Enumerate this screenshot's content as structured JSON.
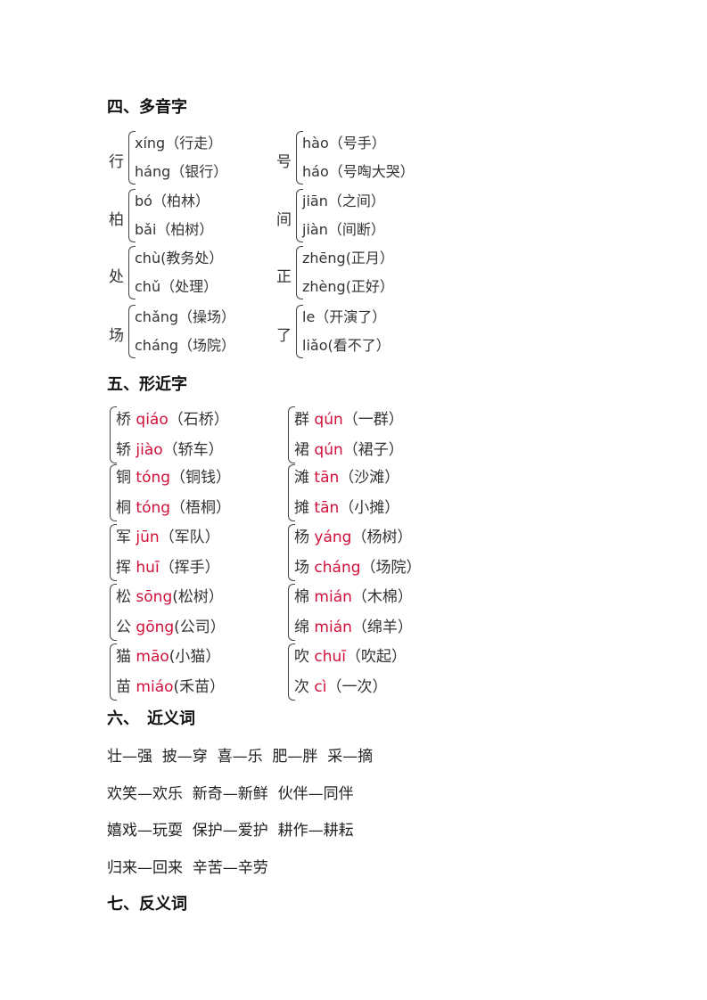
{
  "sections": {
    "s4": {
      "title": "四、多音字"
    },
    "s5": {
      "title": "五、形近字"
    },
    "s6": {
      "title": "六、　近义词",
      "lines": [
        "壮—强  披—穿  喜—乐  肥—胖  采—摘",
        "欢笑—欢乐  新奇—新鲜  伙伴—同伴",
        "嬉戏—玩耍  保护—爱护  耕作—耕耘",
        "归来—回来  辛苦—辛劳"
      ]
    },
    "s7": {
      "title": "七、反义词"
    }
  },
  "polyphones": [
    {
      "char": "行",
      "items": [
        {
          "py": "xíng",
          "word": "（行走）"
        },
        {
          "py": "háng",
          "word": "（银行）"
        }
      ]
    },
    {
      "char": "号",
      "items": [
        {
          "py": "hào",
          "word": "（号手）"
        },
        {
          "py": "háo",
          "word": "（号啕大哭）"
        }
      ]
    },
    {
      "char": "柏",
      "items": [
        {
          "py": "bó",
          "word": "（柏林）"
        },
        {
          "py": "bǎi",
          "word": "（柏树）"
        }
      ]
    },
    {
      "char": "间",
      "items": [
        {
          "py": "jiān",
          "word": "（之间）"
        },
        {
          "py": "jiàn",
          "word": "（间断）"
        }
      ]
    },
    {
      "char": "处",
      "items": [
        {
          "py": "chù",
          "word": "(教务处）"
        },
        {
          "py": "chǔ",
          "word": "（处理）"
        }
      ]
    },
    {
      "char": "正",
      "items": [
        {
          "py": "zhēng",
          "word": "(正月）"
        },
        {
          "py": "zhèng",
          "word": "(正好）"
        }
      ]
    },
    {
      "char": "场",
      "items": [
        {
          "py": "chǎng",
          "word": "（操场）"
        },
        {
          "py": "cháng",
          "word": "（场院）"
        }
      ]
    },
    {
      "char": "了",
      "items": [
        {
          "py": "le",
          "word": "（开演了）"
        },
        {
          "py": "liǎo",
          "word": "(看不了）"
        }
      ]
    }
  ],
  "similar": [
    [
      {
        "char": "桥",
        "py": "qiáo",
        "word": "（石桥）"
      },
      {
        "char": "轿",
        "py": "jiào",
        "word": "（轿车）"
      }
    ],
    [
      {
        "char": "群",
        "py": "qún",
        "word": "（一群）"
      },
      {
        "char": "裙",
        "py": "qún",
        "word": "（裙子）"
      }
    ],
    [
      {
        "char": "铜",
        "py": "tóng",
        "word": "（铜钱）"
      },
      {
        "char": "桐",
        "py": "tóng",
        "word": "（梧桐）"
      }
    ],
    [
      {
        "char": "滩",
        "py": "tān",
        "word": "（沙滩）"
      },
      {
        "char": "摊",
        "py": "tān",
        "word": "（小摊）"
      }
    ],
    [
      {
        "char": "军",
        "py": "jūn",
        "word": "（军队）"
      },
      {
        "char": "挥",
        "py": "huī",
        "word": "（挥手）"
      }
    ],
    [
      {
        "char": "杨",
        "py": "yáng",
        "word": "（杨树）"
      },
      {
        "char": "场",
        "py": "cháng",
        "word": "（场院）"
      }
    ],
    [
      {
        "char": "松",
        "py": "sōng",
        "word": "(松树）"
      },
      {
        "char": "公",
        "py": "gōng",
        "word": "(公司）"
      }
    ],
    [
      {
        "char": "棉",
        "py": "mián",
        "word": "（木棉）"
      },
      {
        "char": "绵",
        "py": "mián",
        "word": "（绵羊）"
      }
    ],
    [
      {
        "char": "猫",
        "py": "māo",
        "word": "(小猫）"
      },
      {
        "char": "苗",
        "py": "miáo",
        "word": "(禾苗）"
      }
    ],
    [
      {
        "char": "吹",
        "py": "chuī",
        "word": "（吹起）"
      },
      {
        "char": "次",
        "py": "cì",
        "word": "（一次）"
      }
    ]
  ],
  "colors": {
    "pinyin_red": "#d0103a"
  }
}
